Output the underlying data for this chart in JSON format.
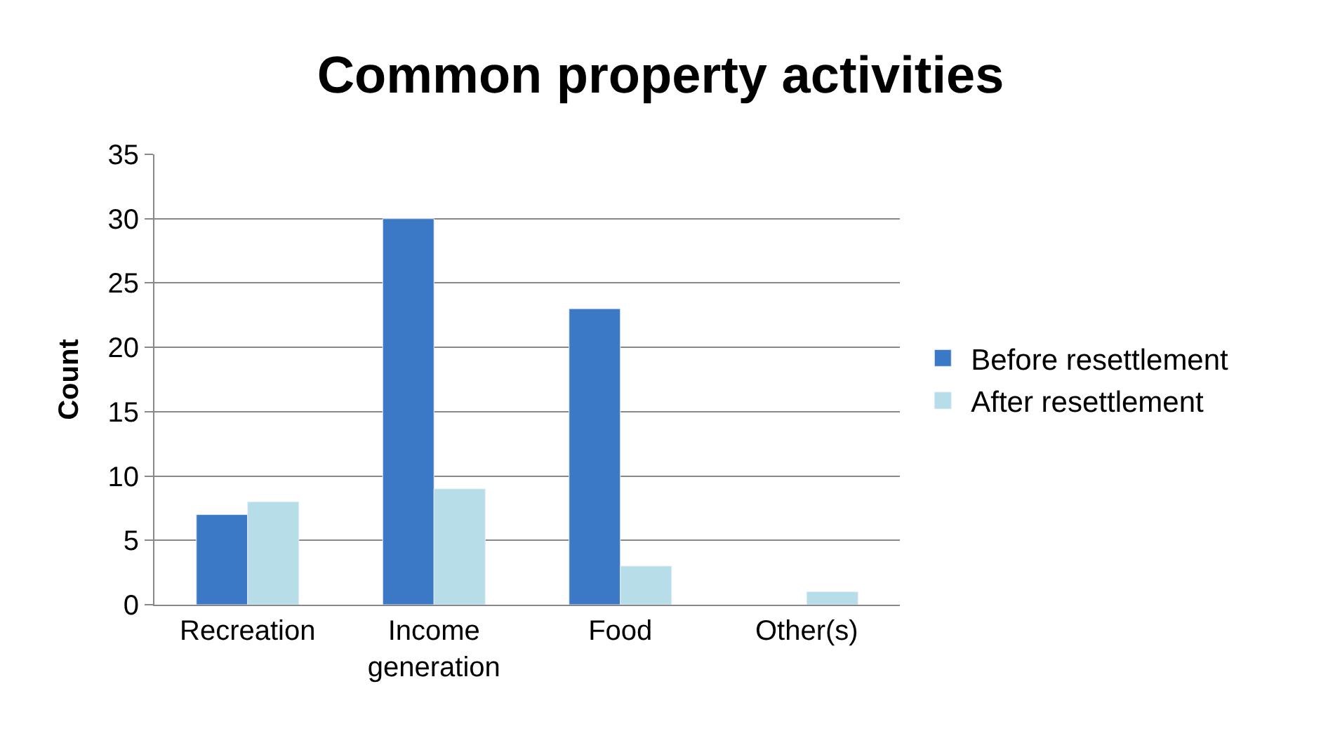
{
  "chart_data": {
    "type": "bar",
    "title": "Common property activities",
    "ylabel": "Count",
    "categories": [
      "Recreation",
      "Income generation",
      "Food",
      "Other(s)"
    ],
    "series": [
      {
        "name": "Before resettlement",
        "color": "#3b78c6",
        "values": [
          7,
          30,
          23,
          null
        ]
      },
      {
        "name": "After resettlement",
        "color": "#b7dde8",
        "values": [
          8,
          9,
          3,
          1
        ]
      }
    ],
    "ylim": [
      0,
      35
    ],
    "yticks": [
      0,
      5,
      10,
      15,
      20,
      25,
      30,
      35
    ],
    "grid": "y",
    "legend": "right"
  }
}
